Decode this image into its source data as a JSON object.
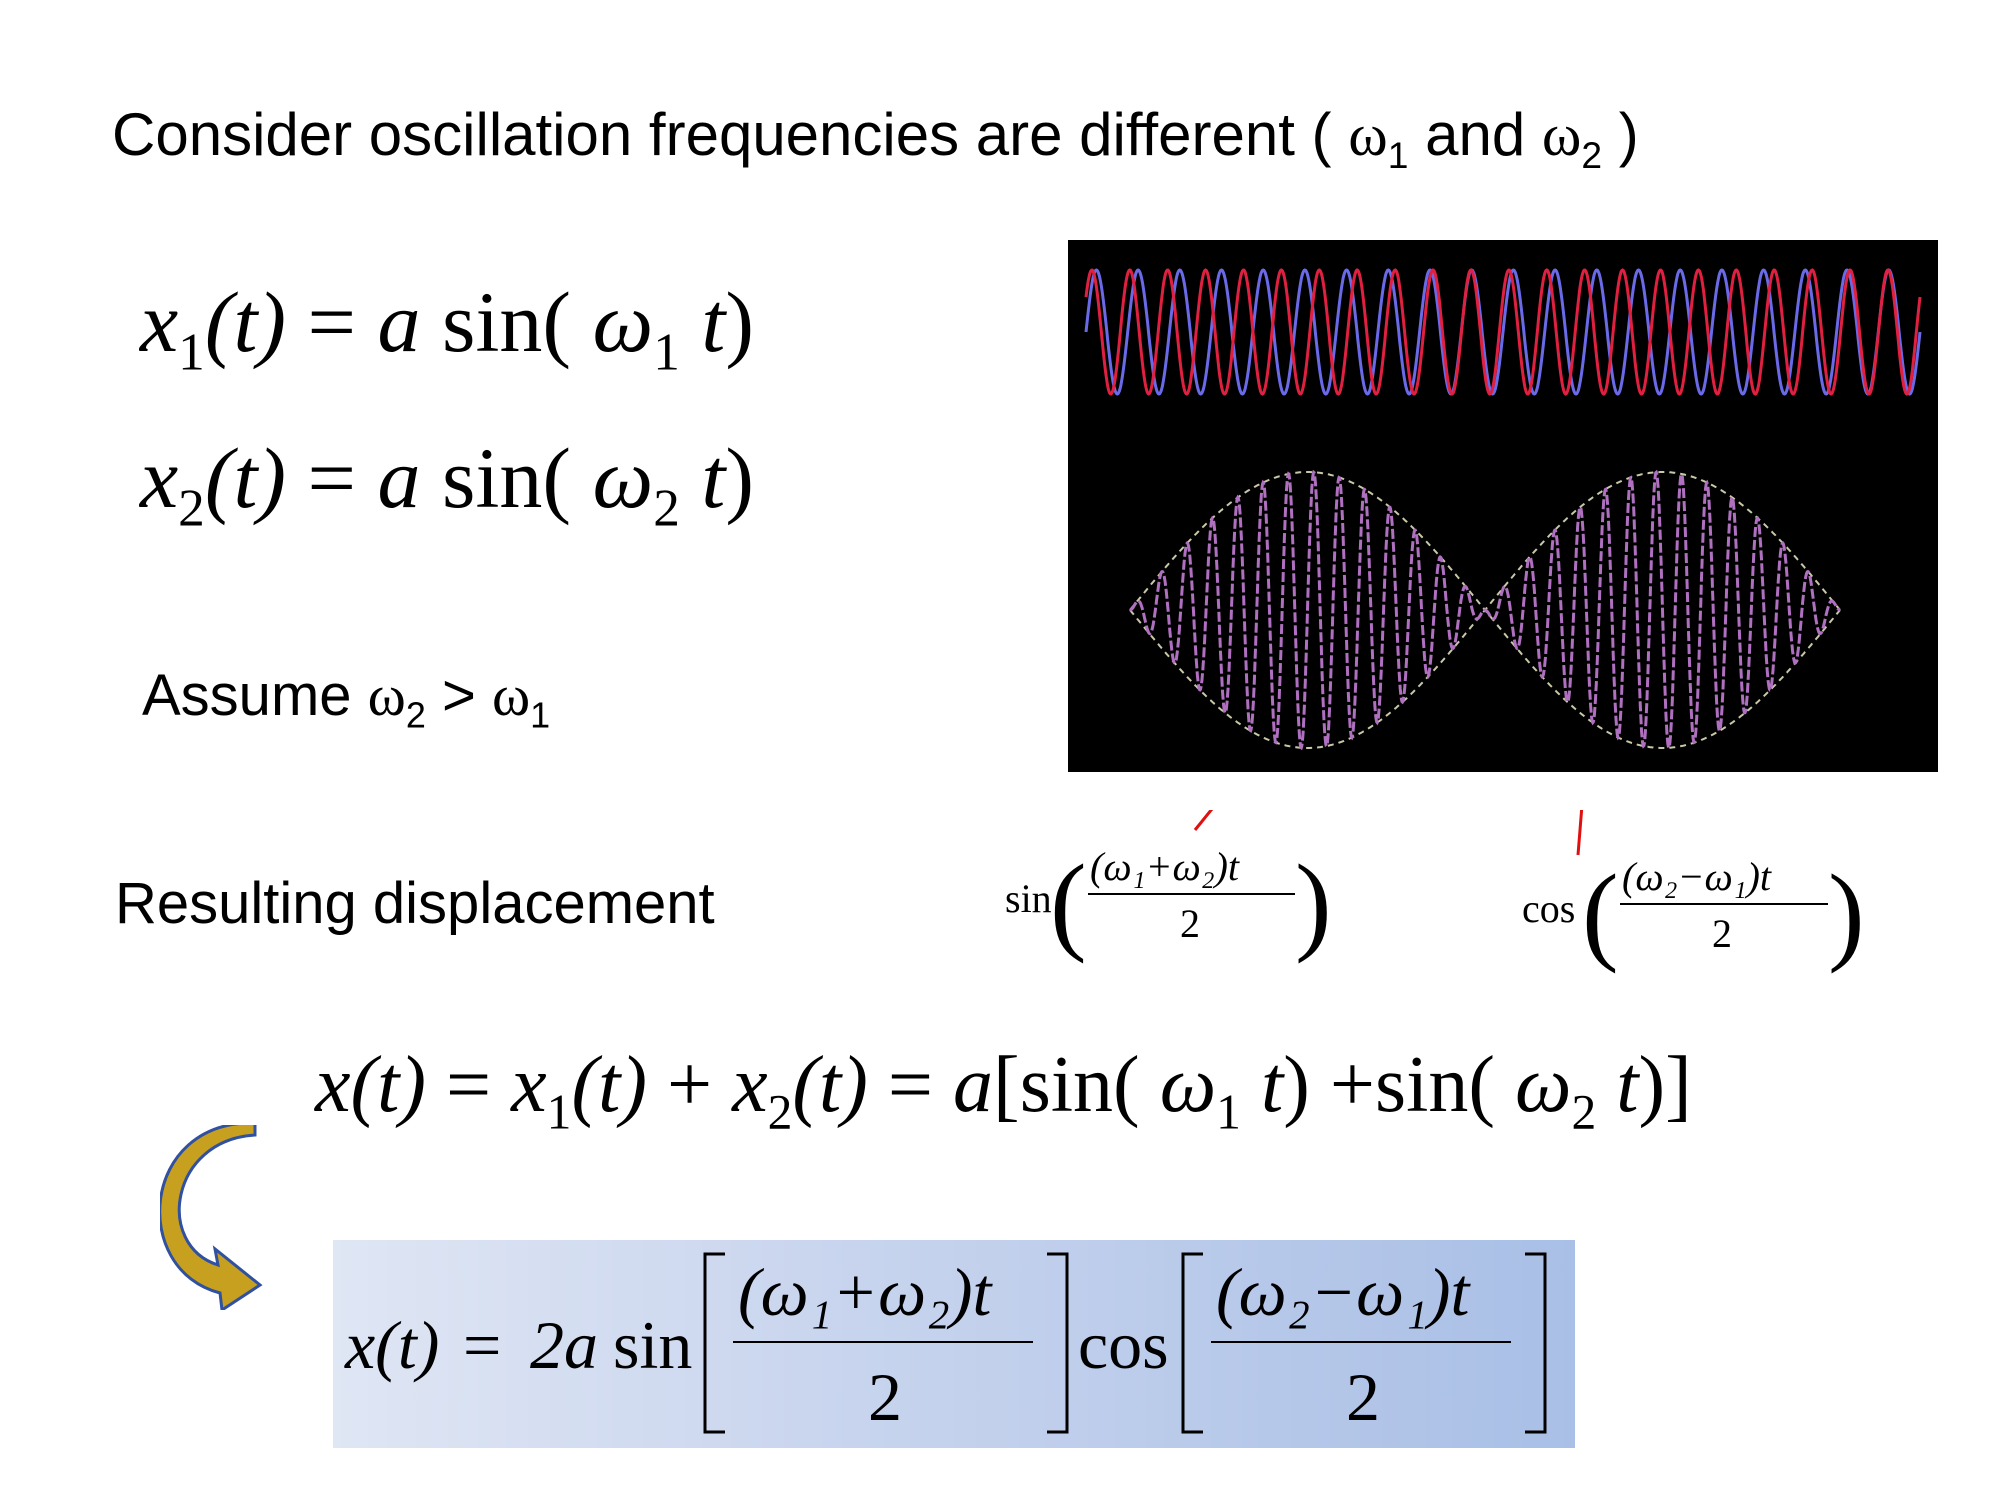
{
  "title": {
    "text_before": "Consider oscillation frequencies are different (",
    "omega": "ω",
    "sub1": "1",
    "and_text": "and",
    "sub2": "2",
    "text_after": ")"
  },
  "eq1": {
    "x": "x",
    "sub": "1",
    "t": "(t)",
    "eq": "=",
    "a": "a",
    "sin": "sin(",
    "omega": "ω",
    "osub": "1",
    "tt": "t",
    "close": ")"
  },
  "eq2": {
    "x": "x",
    "sub": "2",
    "t": "(t)",
    "eq": "=",
    "a": "a",
    "sin": "sin(",
    "omega": "ω",
    "osub": "2",
    "tt": "t",
    "close": ")"
  },
  "assume": {
    "text": "Assume",
    "omega": "ω",
    "sub2": "2",
    "gt": ">",
    "sub1": "1"
  },
  "result": {
    "text": "Resulting displacement"
  },
  "eq3": {
    "lhs": "x(t)",
    "eq": "=",
    "x1": "x",
    "s1": "1",
    "t1": "(t)",
    "plus": "+",
    "x2": "x",
    "s2": "2",
    "t2": "(t)",
    "eq2": "=",
    "a": "a",
    "lbr": "[",
    "sin1": "sin(",
    "w1": "ω",
    "w1s": "1",
    "tt1": "t",
    "c1": ")",
    "plus2": "+",
    "sin2": "sin(",
    "w2": "ω",
    "w2s": "2",
    "tt2": "t",
    "c2": ")",
    "rbr": "]"
  },
  "final": {
    "lhs": "x(t)",
    "eq": "=",
    "coef": "2a",
    "sin": "sin",
    "num1": "(ω₁+ω₂)t",
    "den": "2",
    "cos": "cos",
    "num2": "(ω₂−ω₁)t"
  },
  "plot_labels": {
    "sin_label": "sin",
    "sin_num": "(ω₁+ω₂)t",
    "cos_label": "cos",
    "cos_num": "(ω₂−ω₁)t",
    "den": "2"
  },
  "colors": {
    "wave_blue": "#6a6ae8",
    "wave_red": "#e02040",
    "beat_purple": "#b070c0",
    "envelope": "#c8c8a8",
    "pointer": "#e01010",
    "arrow_gold": "#c8a020",
    "arrow_blue": "#3050a0"
  }
}
